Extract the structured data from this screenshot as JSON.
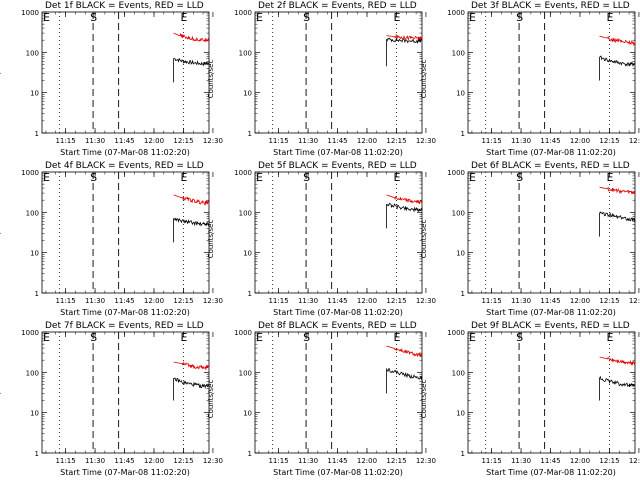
{
  "figure": {
    "xlabel": "Start Time (07-Mar-08 11:02:20)",
    "ylabel": "Counts/sec"
  },
  "colors": {
    "events": "#000000",
    "lld": "#e00000",
    "axes": "#000000"
  },
  "chart_data": [
    {
      "type": "line",
      "title": "Det 1f BLACK = Events, RED = LLD",
      "x": [
        "11:15",
        "11:30",
        "11:45",
        "12:00",
        "12:15",
        "12:30"
      ],
      "y_scale": "log",
      "ylim": [
        1,
        1000
      ],
      "y_ticks": [
        "1",
        "10",
        "100",
        "1000"
      ],
      "xlim_minutes": [
        3,
        88
      ],
      "markers": [
        {
          "label": "E",
          "x_min": 1
        },
        {
          "label": "S",
          "x_min": 29
        },
        {
          "label": "E",
          "x_min": 75
        }
      ],
      "vlines_dotted_min": [
        12,
        75
      ],
      "vlines_dashed_min": [
        29,
        42
      ],
      "series": [
        {
          "name": "Events",
          "values": [
            [
              70,
              18
            ],
            [
              70,
              70
            ],
            [
              75,
              60
            ],
            [
              80,
              55
            ],
            [
              85,
              52
            ],
            [
              88,
              55
            ]
          ]
        },
        {
          "name": "LLD",
          "values": [
            [
              70,
              300
            ],
            [
              73,
              260
            ],
            [
              77,
              230
            ],
            [
              81,
              210
            ],
            [
              85,
              200
            ],
            [
              88,
              215
            ]
          ]
        }
      ]
    },
    {
      "type": "line",
      "title": "Det 2f BLACK = Events, RED = LLD",
      "x": [
        "11:15",
        "11:30",
        "11:45",
        "12:00",
        "12:15",
        "12:30"
      ],
      "y_scale": "log",
      "ylim": [
        1,
        1000
      ],
      "y_ticks": [
        "1",
        "10",
        "100",
        "1000"
      ],
      "xlim_minutes": [
        3,
        88
      ],
      "markers": [
        {
          "label": "E",
          "x_min": 1
        },
        {
          "label": "S",
          "x_min": 29
        },
        {
          "label": "E",
          "x_min": 75
        }
      ],
      "vlines_dotted_min": [
        12,
        75
      ],
      "vlines_dashed_min": [
        29,
        42
      ],
      "series": [
        {
          "name": "Events",
          "values": [
            [
              70,
              45
            ],
            [
              70,
              210
            ],
            [
              75,
              200
            ],
            [
              80,
              195
            ],
            [
              85,
              190
            ],
            [
              88,
              195
            ]
          ]
        },
        {
          "name": "LLD",
          "values": [
            [
              70,
              260
            ],
            [
              74,
              245
            ],
            [
              78,
              235
            ],
            [
              82,
              230
            ],
            [
              86,
              225
            ],
            [
              88,
              220
            ]
          ]
        }
      ]
    },
    {
      "type": "line",
      "title": "Det 3f BLACK = Events, RED = LLD",
      "x": [
        "11:15",
        "11:30",
        "11:45",
        "12:00",
        "12:15",
        "12:30"
      ],
      "y_scale": "log",
      "ylim": [
        1,
        1000
      ],
      "y_ticks": [
        "1",
        "10",
        "100",
        "1000"
      ],
      "xlim_minutes": [
        3,
        88
      ],
      "markers": [
        {
          "label": "E",
          "x_min": 1
        },
        {
          "label": "S",
          "x_min": 29
        },
        {
          "label": "E",
          "x_min": 75
        }
      ],
      "vlines_dotted_min": [
        12,
        75
      ],
      "vlines_dashed_min": [
        29,
        42
      ],
      "series": [
        {
          "name": "Events",
          "values": [
            [
              70,
              20
            ],
            [
              70,
              75
            ],
            [
              75,
              62
            ],
            [
              80,
              55
            ],
            [
              85,
              50
            ],
            [
              88,
              52
            ]
          ]
        },
        {
          "name": "LLD",
          "values": [
            [
              70,
              250
            ],
            [
              74,
              225
            ],
            [
              78,
              200
            ],
            [
              82,
              185
            ],
            [
              86,
              175
            ],
            [
              88,
              170
            ]
          ]
        }
      ]
    },
    {
      "type": "line",
      "title": "Det 4f BLACK = Events, RED = LLD",
      "x": [
        "11:15",
        "11:30",
        "11:45",
        "12:00",
        "12:15",
        "12:30"
      ],
      "y_scale": "log",
      "ylim": [
        1,
        1000
      ],
      "y_ticks": [
        "1",
        "10",
        "100",
        "1000"
      ],
      "xlim_minutes": [
        3,
        88
      ],
      "markers": [
        {
          "label": "E",
          "x_min": 1
        },
        {
          "label": "S",
          "x_min": 29
        },
        {
          "label": "E",
          "x_min": 75
        }
      ],
      "vlines_dotted_min": [
        12,
        75
      ],
      "vlines_dashed_min": [
        29,
        42
      ],
      "series": [
        {
          "name": "Events",
          "values": [
            [
              70,
              18
            ],
            [
              70,
              70
            ],
            [
              75,
              60
            ],
            [
              80,
              55
            ],
            [
              85,
              50
            ],
            [
              88,
              52
            ]
          ]
        },
        {
          "name": "LLD",
          "values": [
            [
              70,
              270
            ],
            [
              74,
              230
            ],
            [
              78,
              205
            ],
            [
              82,
              185
            ],
            [
              86,
              170
            ],
            [
              88,
              180
            ]
          ]
        }
      ]
    },
    {
      "type": "line",
      "title": "Det 5f BLACK = Events, RED = LLD",
      "x": [
        "11:15",
        "11:30",
        "11:45",
        "12:00",
        "12:15",
        "12:30"
      ],
      "y_scale": "log",
      "ylim": [
        1,
        1000
      ],
      "y_ticks": [
        "1",
        "10",
        "100",
        "1000"
      ],
      "xlim_minutes": [
        3,
        88
      ],
      "markers": [
        {
          "label": "E",
          "x_min": 1
        },
        {
          "label": "S",
          "x_min": 29
        },
        {
          "label": "E",
          "x_min": 75
        }
      ],
      "vlines_dotted_min": [
        12,
        75
      ],
      "vlines_dashed_min": [
        29,
        42
      ],
      "series": [
        {
          "name": "Events",
          "values": [
            [
              70,
              40
            ],
            [
              70,
              160
            ],
            [
              75,
              140
            ],
            [
              80,
              125
            ],
            [
              85,
              115
            ],
            [
              88,
              115
            ]
          ]
        },
        {
          "name": "LLD",
          "values": [
            [
              70,
              270
            ],
            [
              74,
              230
            ],
            [
              78,
              205
            ],
            [
              82,
              190
            ],
            [
              86,
              180
            ],
            [
              88,
              185
            ]
          ]
        }
      ]
    },
    {
      "type": "line",
      "title": "Det 6f BLACK = Events, RED = LLD",
      "x": [
        "11:15",
        "11:30",
        "11:45",
        "12:00",
        "12:15",
        "12:30"
      ],
      "y_scale": "log",
      "ylim": [
        1,
        1000
      ],
      "y_ticks": [
        "1",
        "10",
        "100",
        "1000"
      ],
      "xlim_minutes": [
        3,
        88
      ],
      "markers": [
        {
          "label": "E",
          "x_min": 1
        },
        {
          "label": "S",
          "x_min": 29
        },
        {
          "label": "E",
          "x_min": 75
        }
      ],
      "vlines_dotted_min": [
        12,
        75
      ],
      "vlines_dashed_min": [
        29,
        42
      ],
      "series": [
        {
          "name": "Events",
          "values": [
            [
              70,
              25
            ],
            [
              70,
              95
            ],
            [
              75,
              85
            ],
            [
              80,
              75
            ],
            [
              85,
              68
            ],
            [
              88,
              65
            ]
          ]
        },
        {
          "name": "LLD",
          "values": [
            [
              70,
              420
            ],
            [
              74,
              380
            ],
            [
              78,
              350
            ],
            [
              82,
              330
            ],
            [
              86,
              315
            ],
            [
              88,
              310
            ]
          ]
        }
      ]
    },
    {
      "type": "line",
      "title": "Det 7f BLACK = Events, RED = LLD",
      "x": [
        "11:15",
        "11:30",
        "11:45",
        "12:00",
        "12:15",
        "12:30"
      ],
      "y_scale": "log",
      "ylim": [
        1,
        1000
      ],
      "y_ticks": [
        "1",
        "10",
        "100",
        "1000"
      ],
      "xlim_minutes": [
        3,
        88
      ],
      "markers": [
        {
          "label": "E",
          "x_min": 1
        },
        {
          "label": "S",
          "x_min": 29
        },
        {
          "label": "E",
          "x_min": 75
        }
      ],
      "vlines_dotted_min": [
        12,
        75
      ],
      "vlines_dashed_min": [
        29,
        42
      ],
      "series": [
        {
          "name": "Events",
          "values": [
            [
              70,
              20
            ],
            [
              70,
              70
            ],
            [
              75,
              55
            ],
            [
              80,
              50
            ],
            [
              85,
              45
            ],
            [
              88,
              48
            ]
          ]
        },
        {
          "name": "LLD",
          "values": [
            [
              70,
              180
            ],
            [
              74,
              165
            ],
            [
              78,
              150
            ],
            [
              82,
              135
            ],
            [
              86,
              130
            ],
            [
              88,
              140
            ]
          ]
        }
      ]
    },
    {
      "type": "line",
      "title": "Det 8f BLACK = Events, RED = LLD",
      "x": [
        "11:15",
        "11:30",
        "11:45",
        "12:00",
        "12:15",
        "12:30"
      ],
      "y_scale": "log",
      "ylim": [
        1,
        1000
      ],
      "y_ticks": [
        "1",
        "10",
        "100",
        "1000"
      ],
      "xlim_minutes": [
        3,
        88
      ],
      "markers": [
        {
          "label": "E",
          "x_min": 1
        },
        {
          "label": "S",
          "x_min": 29
        },
        {
          "label": "E",
          "x_min": 75
        }
      ],
      "vlines_dotted_min": [
        12,
        75
      ],
      "vlines_dashed_min": [
        29,
        42
      ],
      "series": [
        {
          "name": "Events",
          "values": [
            [
              70,
              30
            ],
            [
              70,
              120
            ],
            [
              75,
              100
            ],
            [
              80,
              85
            ],
            [
              85,
              75
            ],
            [
              88,
              70
            ]
          ]
        },
        {
          "name": "LLD",
          "values": [
            [
              70,
              450
            ],
            [
              74,
              390
            ],
            [
              78,
              340
            ],
            [
              82,
              300
            ],
            [
              86,
              270
            ],
            [
              88,
              260
            ]
          ]
        }
      ]
    },
    {
      "type": "line",
      "title": "Det 9f BLACK = Events, RED = LLD",
      "x": [
        "11:15",
        "11:30",
        "11:45",
        "12:00",
        "12:15",
        "12:30"
      ],
      "y_scale": "log",
      "ylim": [
        1,
        1000
      ],
      "y_ticks": [
        "1",
        "10",
        "100",
        "1000"
      ],
      "xlim_minutes": [
        3,
        88
      ],
      "markers": [
        {
          "label": "E",
          "x_min": 1
        },
        {
          "label": "S",
          "x_min": 29
        },
        {
          "label": "E",
          "x_min": 75
        }
      ],
      "vlines_dotted_min": [
        12,
        75
      ],
      "vlines_dashed_min": [
        29,
        42
      ],
      "series": [
        {
          "name": "Events",
          "values": [
            [
              70,
              20
            ],
            [
              70,
              72
            ],
            [
              75,
              60
            ],
            [
              80,
              52
            ],
            [
              85,
              48
            ],
            [
              88,
              46
            ]
          ]
        },
        {
          "name": "LLD",
          "values": [
            [
              70,
              240
            ],
            [
              74,
              215
            ],
            [
              78,
              195
            ],
            [
              82,
              180
            ],
            [
              86,
              170
            ],
            [
              88,
              175
            ]
          ]
        }
      ]
    }
  ]
}
